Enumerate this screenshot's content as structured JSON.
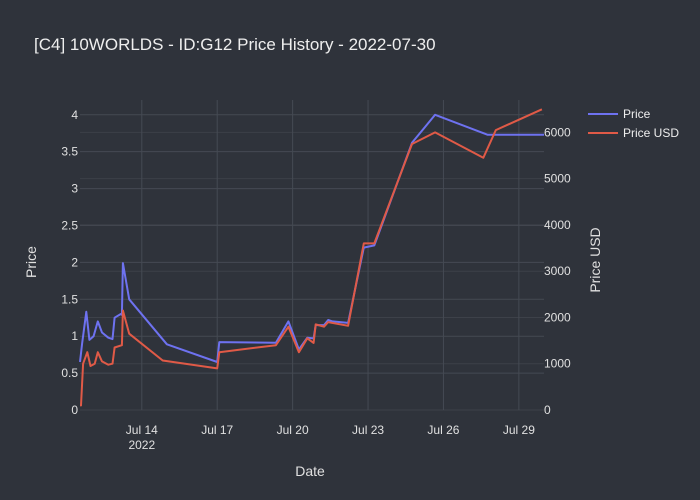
{
  "chart_data": {
    "type": "line",
    "title": "[C4] 10WORLDS - ID:G12 Price History - 2022-07-30",
    "xlabel": "Date",
    "ylabel": "Price",
    "y2label": "Price USD",
    "ylim": [
      0,
      4.2
    ],
    "y2lim": [
      0,
      6700
    ],
    "xlim": [
      "2022-07-11 13:00",
      "2022-07-30 00:00"
    ],
    "x_ticks": [
      {
        "date": "2022-07-14",
        "label": "Jul 14",
        "sublabel": "2022"
      },
      {
        "date": "2022-07-17",
        "label": "Jul 17",
        "sublabel": ""
      },
      {
        "date": "2022-07-20",
        "label": "Jul 20",
        "sublabel": ""
      },
      {
        "date": "2022-07-23",
        "label": "Jul 23",
        "sublabel": ""
      },
      {
        "date": "2022-07-26",
        "label": "Jul 26",
        "sublabel": ""
      },
      {
        "date": "2022-07-29",
        "label": "Jul 29",
        "sublabel": ""
      }
    ],
    "y_ticks": [
      {
        "value": 0,
        "label": "0"
      },
      {
        "value": 0.5,
        "label": "0.5"
      },
      {
        "value": 1,
        "label": "1"
      },
      {
        "value": 1.5,
        "label": "1.5"
      },
      {
        "value": 2,
        "label": "2"
      },
      {
        "value": 2.5,
        "label": "2.5"
      },
      {
        "value": 3,
        "label": "3"
      },
      {
        "value": 3.5,
        "label": "3.5"
      },
      {
        "value": 4,
        "label": "4"
      }
    ],
    "y2_ticks": [
      {
        "value": 0,
        "label": "0"
      },
      {
        "value": 1000,
        "label": "1000"
      },
      {
        "value": 2000,
        "label": "2000"
      },
      {
        "value": 3000,
        "label": "3000"
      },
      {
        "value": 4000,
        "label": "4000"
      },
      {
        "value": 5000,
        "label": "5000"
      },
      {
        "value": 6000,
        "label": "6000"
      }
    ],
    "grid": true,
    "legend_position": "top-right",
    "series": [
      {
        "name": "Price",
        "axis": "y",
        "color": "#6e72f0",
        "points": [
          [
            "2022-07-11 13:00",
            0.65
          ],
          [
            "2022-07-11 15:00",
            0.9
          ],
          [
            "2022-07-11 19:00",
            1.33
          ],
          [
            "2022-07-11 22:00",
            0.95
          ],
          [
            "2022-07-12 02:00",
            1.0
          ],
          [
            "2022-07-12 06:00",
            1.2
          ],
          [
            "2022-07-12 10:00",
            1.05
          ],
          [
            "2022-07-12 16:00",
            0.98
          ],
          [
            "2022-07-12 20:00",
            0.96
          ],
          [
            "2022-07-12 22:00",
            1.25
          ],
          [
            "2022-07-13 04:00",
            1.3
          ],
          [
            "2022-07-13 05:00",
            1.29
          ],
          [
            "2022-07-13 06:00",
            1.99
          ],
          [
            "2022-07-13 12:00",
            1.5
          ],
          [
            "2022-07-15 00:00",
            0.89
          ],
          [
            "2022-07-17 00:00",
            0.65
          ],
          [
            "2022-07-17 02:00",
            0.92
          ],
          [
            "2022-07-19 08:00",
            0.91
          ],
          [
            "2022-07-19 20:00",
            1.2
          ],
          [
            "2022-07-20 06:00",
            0.82
          ],
          [
            "2022-07-20 14:00",
            0.98
          ],
          [
            "2022-07-20 20:00",
            0.97
          ],
          [
            "2022-07-20 22:00",
            1.15
          ],
          [
            "2022-07-21 06:00",
            1.15
          ],
          [
            "2022-07-21 10:00",
            1.22
          ],
          [
            "2022-07-21 14:00",
            1.2
          ],
          [
            "2022-07-22 05:00",
            1.18
          ],
          [
            "2022-07-22 20:00",
            2.2
          ],
          [
            "2022-07-23 06:00",
            2.23
          ],
          [
            "2022-07-24 18:00",
            3.62
          ],
          [
            "2022-07-25 16:00",
            4.0
          ],
          [
            "2022-07-27 18:00",
            3.73
          ],
          [
            "2022-07-28 12:00",
            3.73
          ],
          [
            "2022-07-30 00:00",
            3.73
          ]
        ]
      },
      {
        "name": "Price USD",
        "axis": "y2",
        "color": "#e05a47",
        "points": [
          [
            "2022-07-11 13:00",
            100
          ],
          [
            "2022-07-11 14:00",
            100
          ],
          [
            "2022-07-11 16:00",
            1000
          ],
          [
            "2022-07-11 20:00",
            1250
          ],
          [
            "2022-07-11 23:00",
            950
          ],
          [
            "2022-07-12 03:00",
            1000
          ],
          [
            "2022-07-12 06:00",
            1250
          ],
          [
            "2022-07-12 10:00",
            1050
          ],
          [
            "2022-07-12 16:00",
            980
          ],
          [
            "2022-07-12 20:00",
            1000
          ],
          [
            "2022-07-12 22:00",
            1350
          ],
          [
            "2022-07-13 05:00",
            1400
          ],
          [
            "2022-07-13 06:00",
            2150
          ],
          [
            "2022-07-13 12:00",
            1650
          ],
          [
            "2022-07-14 20:00",
            1070
          ],
          [
            "2022-07-17 00:00",
            900
          ],
          [
            "2022-07-17 02:00",
            1250
          ],
          [
            "2022-07-19 08:00",
            1400
          ],
          [
            "2022-07-19 20:00",
            1800
          ],
          [
            "2022-07-20 06:00",
            1250
          ],
          [
            "2022-07-20 14:00",
            1550
          ],
          [
            "2022-07-20 20:00",
            1450
          ],
          [
            "2022-07-20 22:00",
            1850
          ],
          [
            "2022-07-21 06:00",
            1800
          ],
          [
            "2022-07-21 10:00",
            1900
          ],
          [
            "2022-07-22 05:00",
            1820
          ],
          [
            "2022-07-22 20:00",
            3600
          ],
          [
            "2022-07-23 06:00",
            3600
          ],
          [
            "2022-07-24 18:00",
            5750
          ],
          [
            "2022-07-25 16:00",
            6000
          ],
          [
            "2022-07-27 14:00",
            5450
          ],
          [
            "2022-07-28 02:00",
            6050
          ],
          [
            "2022-07-29 22:00",
            6500
          ]
        ]
      }
    ]
  }
}
